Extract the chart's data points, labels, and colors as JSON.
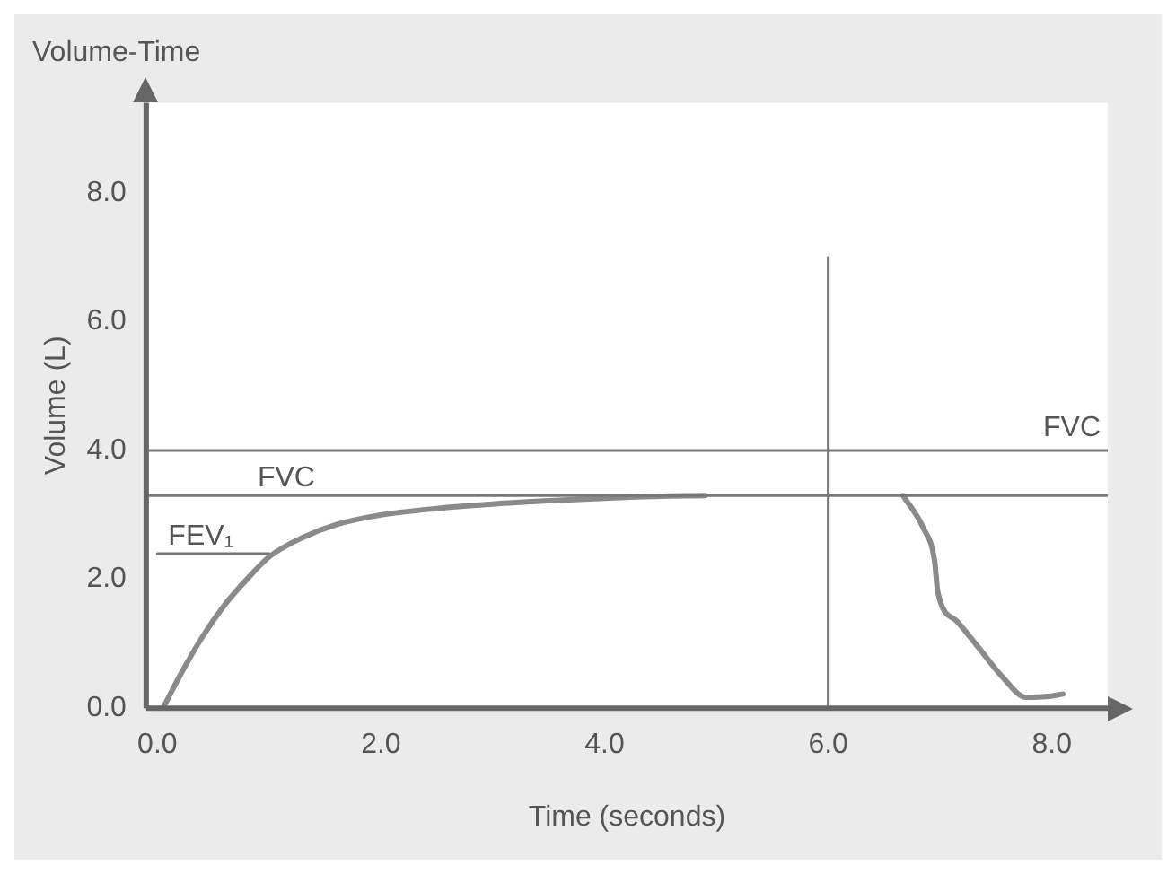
{
  "chart_data": {
    "type": "line",
    "title": "Volume-Time",
    "xlabel": "Time (seconds)",
    "ylabel": "Volume (L)",
    "xlim": [
      -0.1,
      8.5
    ],
    "ylim": [
      0,
      9.4
    ],
    "xticks": [
      {
        "value": 0,
        "label": "0.0"
      },
      {
        "value": 2,
        "label": "2.0"
      },
      {
        "value": 4,
        "label": "4.0"
      },
      {
        "value": 6,
        "label": "6.0"
      },
      {
        "value": 8,
        "label": "8.0"
      }
    ],
    "yticks": [
      {
        "value": 0,
        "label": "0.0"
      },
      {
        "value": 2,
        "label": "2.0"
      },
      {
        "value": 4,
        "label": "4.0"
      },
      {
        "value": 6,
        "label": "6.0"
      },
      {
        "value": 8,
        "label": "8.0"
      }
    ],
    "grid": false,
    "legend": false,
    "marker": "none",
    "line_style": "solid",
    "series": [
      {
        "color": "#8a8a8a",
        "x": [
          0.05,
          0.2,
          0.4,
          0.6,
          0.8,
          1.0,
          1.3,
          1.6,
          2.0,
          2.5,
          3.0,
          3.5,
          4.0,
          4.5,
          4.9
        ],
        "values": [
          0,
          0.5,
          1.1,
          1.6,
          2.0,
          2.35,
          2.65,
          2.85,
          3.0,
          3.1,
          3.17,
          3.22,
          3.26,
          3.29,
          3.3
        ]
      },
      {
        "color": "#8a8a8a",
        "x": [
          6.67,
          6.85,
          6.95,
          6.98,
          7.15,
          7.34,
          7.55,
          7.77,
          7.95,
          8.1
        ],
        "values": [
          3.3,
          2.8,
          2.3,
          1.8,
          1.35,
          0.95,
          0.5,
          0.17,
          0.18,
          0.22
        ]
      },
      {
        "name": "FEV₁",
        "color": "#777777",
        "x": [
          0,
          1.0
        ],
        "values": [
          2.4,
          2.4
        ]
      },
      {
        "color": "#777777",
        "x": [
          6,
          6
        ],
        "values": [
          0,
          7.0
        ]
      }
    ],
    "ref_lines": [
      {
        "axis": "y",
        "value": 4.0,
        "label": "FVC",
        "color": "#777777"
      },
      {
        "axis": "y",
        "value": 3.3,
        "label": "FVC",
        "color": "#777777"
      }
    ]
  }
}
